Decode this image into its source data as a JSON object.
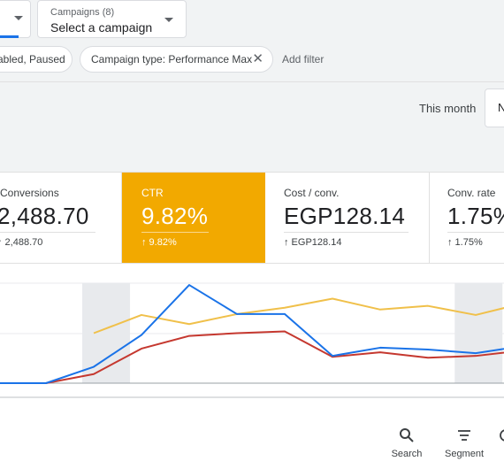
{
  "campaign_bar": {
    "campaigns_label": "Campaigns (8)",
    "campaigns_value": "Select a campaign"
  },
  "filters": {
    "status_chip": "abled, Paused",
    "type_chip": "Campaign type: Performance Max",
    "add_filter": "Add filter"
  },
  "date_range": {
    "label": "This month",
    "select_partial": "N"
  },
  "metrics": [
    {
      "label": "Conversions",
      "value": "2,488.70",
      "delta": "↑ 2,488.70"
    },
    {
      "label": "CTR",
      "value": "9.82%",
      "delta": "↑ 9.82%"
    },
    {
      "label": "Cost / conv.",
      "value": "EGP128.14",
      "delta": "↑ EGP128.14"
    },
    {
      "label": "Conv. rate",
      "value": "1.75%",
      "delta": "↑ 1.75%"
    }
  ],
  "colors": {
    "accent_blue": "#1a73e8",
    "highlight_orange": "#f2a900",
    "line_red": "#c5382f",
    "line_yellow": "#f0c04a",
    "weekend_shade": "#e8eaed"
  },
  "chart_data": {
    "type": "line",
    "x": [
      0,
      1,
      2,
      3,
      4,
      5,
      6,
      7,
      8,
      9,
      10,
      11
    ],
    "series": [
      {
        "color": "#1a73e8",
        "values": [
          0,
          0,
          18,
          53,
          108,
          76,
          76,
          30,
          39,
          37,
          33,
          41
        ]
      },
      {
        "color": "#c5382f",
        "values": [
          0,
          0,
          10,
          38,
          52,
          55,
          57,
          29,
          34,
          28,
          30,
          36
        ]
      },
      {
        "color": "#f0c04a",
        "values": [
          null,
          null,
          55,
          75,
          65,
          76,
          83,
          93,
          81,
          85,
          75,
          88
        ]
      }
    ],
    "shaded_x_ranges": [
      [
        1.76,
        2.76
      ],
      [
        9.56,
        10.56
      ]
    ],
    "grid": true
  },
  "toolbar": {
    "search_label": "Search",
    "segment_label": "Segment",
    "search_icon": "search-icon",
    "segment_icon": "segment-icon"
  }
}
